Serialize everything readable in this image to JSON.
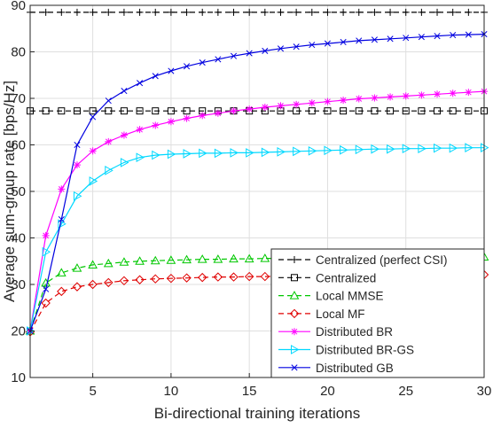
{
  "chart_data": {
    "type": "line",
    "title": "",
    "xlabel": "Bi-directional training iterations",
    "ylabel": "Average sum-group rate [bps/Hz]",
    "xlim": [
      1,
      30
    ],
    "ylim": [
      10,
      90
    ],
    "xticks": [
      5,
      10,
      15,
      20,
      25,
      30
    ],
    "yticks": [
      10,
      20,
      30,
      40,
      50,
      60,
      70,
      80,
      90
    ],
    "grid": true,
    "legend_position": "bottom-right",
    "x": [
      1,
      2,
      3,
      4,
      5,
      6,
      7,
      8,
      9,
      10,
      11,
      12,
      13,
      14,
      15,
      16,
      17,
      18,
      19,
      20,
      21,
      22,
      23,
      24,
      25,
      26,
      27,
      28,
      29,
      30
    ],
    "series": [
      {
        "name": "Centralized (perfect CSI)",
        "color": "#000000",
        "dash": "dashed",
        "marker": "plus",
        "values": [
          88.5,
          88.5,
          88.5,
          88.5,
          88.5,
          88.5,
          88.5,
          88.5,
          88.5,
          88.5,
          88.5,
          88.5,
          88.5,
          88.5,
          88.5,
          88.5,
          88.5,
          88.5,
          88.5,
          88.5,
          88.5,
          88.5,
          88.5,
          88.5,
          88.5,
          88.5,
          88.5,
          88.5,
          88.5,
          88.5
        ]
      },
      {
        "name": "Centralized",
        "color": "#000000",
        "dash": "dashed",
        "marker": "square",
        "values": [
          67.3,
          67.3,
          67.3,
          67.3,
          67.3,
          67.3,
          67.3,
          67.3,
          67.3,
          67.3,
          67.3,
          67.3,
          67.3,
          67.3,
          67.3,
          67.3,
          67.3,
          67.3,
          67.3,
          67.3,
          67.3,
          67.3,
          67.3,
          67.3,
          67.3,
          67.3,
          67.3,
          67.3,
          67.3,
          67.3
        ]
      },
      {
        "name": "Local MMSE",
        "color": "#00c800",
        "dash": "dashed",
        "marker": "triangle",
        "values": [
          20,
          30.3,
          32.5,
          33.5,
          34.2,
          34.5,
          34.8,
          35,
          35.1,
          35.2,
          35.3,
          35.4,
          35.4,
          35.5,
          35.5,
          35.6,
          35.6,
          35.6,
          35.7,
          35.7,
          35.7,
          35.7,
          35.8,
          35.8,
          35.8,
          35.8,
          35.8,
          35.9,
          35.9,
          35.9
        ]
      },
      {
        "name": "Local MF",
        "color": "#e00000",
        "dash": "dashed",
        "marker": "diamond",
        "values": [
          19.8,
          26,
          28.5,
          29.5,
          30,
          30.4,
          30.8,
          31,
          31.2,
          31.3,
          31.4,
          31.5,
          31.6,
          31.6,
          31.7,
          31.7,
          31.8,
          31.8,
          31.8,
          31.9,
          31.9,
          31.9,
          31.9,
          32,
          32,
          32,
          32,
          32,
          32.1,
          32.1
        ]
      },
      {
        "name": "Distributed BR",
        "color": "#ff00ff",
        "dash": "solid",
        "marker": "star",
        "values": [
          20,
          40.5,
          50.5,
          55.7,
          58.7,
          60.7,
          62.1,
          63.3,
          64.2,
          65,
          65.7,
          66.3,
          66.8,
          67.3,
          67.7,
          68.1,
          68.4,
          68.7,
          69,
          69.3,
          69.6,
          69.9,
          70.1,
          70.3,
          70.5,
          70.7,
          70.9,
          71.1,
          71.3,
          71.5
        ]
      },
      {
        "name": "Distributed BR-GS",
        "color": "#00d8ff",
        "dash": "solid",
        "marker": "triangle-right",
        "values": [
          20,
          37,
          43,
          49,
          52.2,
          54.5,
          56.2,
          57.3,
          57.8,
          58,
          58.1,
          58.2,
          58.2,
          58.3,
          58.3,
          58.4,
          58.5,
          58.6,
          58.7,
          58.8,
          58.9,
          59,
          59.1,
          59.1,
          59.2,
          59.2,
          59.3,
          59.3,
          59.4,
          59.4
        ]
      },
      {
        "name": "Distributed GB",
        "color": "#0000e0",
        "dash": "solid",
        "marker": "x",
        "values": [
          20,
          29,
          44,
          60,
          66,
          69.5,
          71.6,
          73.3,
          74.8,
          75.9,
          76.9,
          77.7,
          78.4,
          79.1,
          79.7,
          80.2,
          80.7,
          81.1,
          81.5,
          81.8,
          82.1,
          82.4,
          82.6,
          82.8,
          83,
          83.2,
          83.4,
          83.6,
          83.7,
          83.8
        ]
      }
    ]
  }
}
